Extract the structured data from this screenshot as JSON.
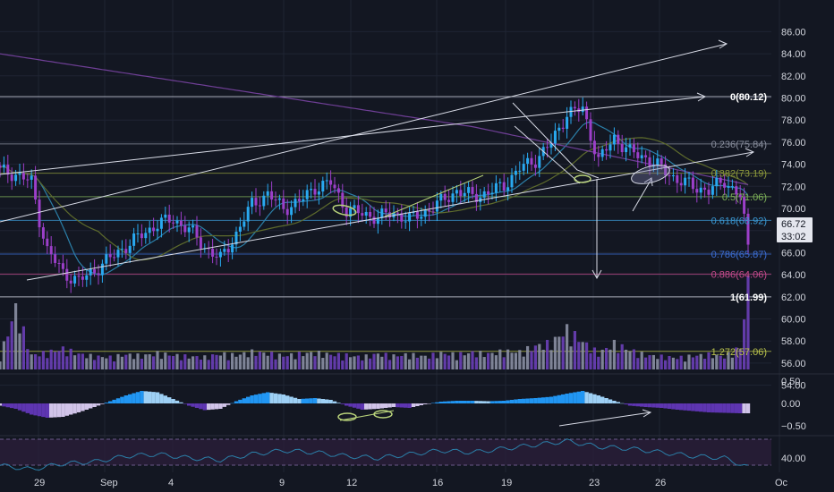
{
  "colors": {
    "background": "#131722",
    "grid": "#1f2433",
    "axis_text": "#d1d4dc",
    "candle_up": "#29a9f0",
    "candle_down": "#9c3fc9",
    "volume_up": "#8b8fa3",
    "volume_down": "#6b3fb8",
    "ma_slow": "#6f3f96",
    "ma_mid": "#5d6a2c",
    "ma_fast": "#2b7fa8",
    "channel": "#d8dbe6",
    "fib_0": "#d8dbe6",
    "fib_0236": "#8a8f9e",
    "fib_0382": "#8e9a3c",
    "fib_05": "#7fb45a",
    "fib_0618": "#3b9ad6",
    "fib_0786": "#3d6fd6",
    "fib_0886": "#c64a8c",
    "fib_1": "#d8dbe6",
    "fib_1272": "#b9c24b",
    "macd_pos_strong": "#2196f3",
    "macd_pos_weak": "#9ed0f5",
    "macd_neg_strong": "#5e35b1",
    "macd_neg_weak": "#d1c4e9",
    "rsi_line": "#2b7fa8",
    "rsi_band": "#2a1e3a",
    "annotation_green": "#b8d27a",
    "price_tag_bg": "#e4e6ee"
  },
  "price_axis": {
    "ticks": [
      "86.00",
      "84.00",
      "82.00",
      "80.00",
      "78.00",
      "76.00",
      "74.00",
      "72.00",
      "70.00",
      "68.00",
      "66.00",
      "64.00",
      "62.00",
      "60.00",
      "58.00",
      "56.00",
      "54.00"
    ],
    "current_price": "66.72",
    "countdown": "33:02"
  },
  "macd_axis": {
    "ticks": [
      "0.50",
      "0.00",
      "−0.50"
    ]
  },
  "rsi_axis": {
    "ticks": [
      "40.00"
    ]
  },
  "time_axis": {
    "labels": [
      "29",
      "Sep",
      "4",
      "9",
      "12",
      "16",
      "19",
      "23",
      "26",
      "Oc"
    ]
  },
  "fib_levels": [
    {
      "label": "0(80.12)",
      "value": 80.12,
      "bold": true
    },
    {
      "label": "0.236(75.84)",
      "value": 75.84,
      "bold": false
    },
    {
      "label": "0.382(73.19)",
      "value": 73.19,
      "bold": false
    },
    {
      "label": "0.5(71.06)",
      "value": 71.06,
      "bold": false
    },
    {
      "label": "0.618(68.92)",
      "value": 68.92,
      "bold": false
    },
    {
      "label": "0.786(65.87)",
      "value": 65.87,
      "bold": false
    },
    {
      "label": "0.886(64.06)",
      "value": 64.06,
      "bold": false
    },
    {
      "label": "1(61.99)",
      "value": 61.99,
      "bold": true
    },
    {
      "label": "1.272(57.06)",
      "value": 57.06,
      "bold": false
    }
  ],
  "chart_data": {
    "type": "candlestick",
    "title": "",
    "xlabel": "",
    "ylabel": "",
    "ylim": [
      53,
      87
    ],
    "x_labels": [
      "29",
      "Sep",
      "4",
      "9",
      "12",
      "16",
      "19",
      "23",
      "26",
      "Oc"
    ],
    "close_series_approx": [
      [
        0,
        73.4
      ],
      [
        4,
        73.1
      ],
      [
        8,
        72.4
      ],
      [
        10,
        69.0
      ],
      [
        12,
        66.2
      ],
      [
        16,
        64.2
      ],
      [
        20,
        63.4
      ],
      [
        24,
        64.4
      ],
      [
        28,
        65.5
      ],
      [
        32,
        66.6
      ],
      [
        36,
        67.6
      ],
      [
        40,
        68.6
      ],
      [
        44,
        69.0
      ],
      [
        48,
        68.1
      ],
      [
        52,
        66.5
      ],
      [
        56,
        65.4
      ],
      [
        60,
        67.7
      ],
      [
        64,
        70.4
      ],
      [
        68,
        71.3
      ],
      [
        72,
        70.0
      ],
      [
        76,
        70.6
      ],
      [
        80,
        71.9
      ],
      [
        84,
        72.3
      ],
      [
        88,
        69.9
      ],
      [
        92,
        69.5
      ],
      [
        96,
        69.2
      ],
      [
        100,
        69.6
      ],
      [
        104,
        69.0
      ],
      [
        108,
        69.7
      ],
      [
        112,
        70.6
      ],
      [
        116,
        71.6
      ],
      [
        120,
        71.1
      ],
      [
        124,
        71.4
      ],
      [
        128,
        72.1
      ],
      [
        132,
        73.6
      ],
      [
        136,
        74.4
      ],
      [
        140,
        75.9
      ],
      [
        144,
        78.6
      ],
      [
        148,
        79.0
      ],
      [
        152,
        74.3
      ],
      [
        156,
        76.4
      ],
      [
        160,
        75.1
      ],
      [
        164,
        74.6
      ],
      [
        168,
        73.6
      ],
      [
        172,
        72.6
      ],
      [
        176,
        72.0
      ],
      [
        180,
        71.6
      ],
      [
        184,
        72.5
      ],
      [
        188,
        71.1
      ],
      [
        190,
        66.72
      ]
    ],
    "volume_approx": [
      [
        0,
        2.0
      ],
      [
        4,
        9.4
      ],
      [
        8,
        2.2
      ],
      [
        12,
        2.6
      ],
      [
        16,
        3.2
      ],
      [
        20,
        2.4
      ],
      [
        24,
        2.0
      ],
      [
        28,
        1.9
      ],
      [
        32,
        2.3
      ],
      [
        36,
        2.1
      ],
      [
        40,
        2.5
      ],
      [
        44,
        2.2
      ],
      [
        48,
        2.0
      ],
      [
        52,
        1.9
      ],
      [
        56,
        2.4
      ],
      [
        60,
        2.2
      ],
      [
        64,
        2.7
      ],
      [
        68,
        2.5
      ],
      [
        72,
        2.1
      ],
      [
        76,
        2.4
      ],
      [
        80,
        2.6
      ],
      [
        84,
        2.3
      ],
      [
        88,
        2.2
      ],
      [
        92,
        1.9
      ],
      [
        96,
        2.4
      ],
      [
        100,
        2.1
      ],
      [
        104,
        2.3
      ],
      [
        108,
        2.0
      ],
      [
        112,
        2.5
      ],
      [
        116,
        2.3
      ],
      [
        120,
        2.6
      ],
      [
        124,
        2.4
      ],
      [
        128,
        2.8
      ],
      [
        132,
        2.7
      ],
      [
        136,
        3.6
      ],
      [
        140,
        4.1
      ],
      [
        144,
        6.2
      ],
      [
        148,
        4.3
      ],
      [
        152,
        2.5
      ],
      [
        156,
        4.0
      ],
      [
        160,
        3.0
      ],
      [
        164,
        2.2
      ],
      [
        168,
        2.0
      ],
      [
        172,
        1.8
      ],
      [
        176,
        2.1
      ],
      [
        180,
        2.3
      ],
      [
        184,
        2.0
      ],
      [
        188,
        3.4
      ],
      [
        190,
        13.0
      ]
    ],
    "macd_hist_approx": [
      [
        0,
        -0.05
      ],
      [
        4,
        -0.12
      ],
      [
        8,
        -0.25
      ],
      [
        12,
        -0.32
      ],
      [
        16,
        -0.3
      ],
      [
        20,
        -0.2
      ],
      [
        24,
        -0.08
      ],
      [
        28,
        0.05
      ],
      [
        32,
        0.18
      ],
      [
        36,
        0.28
      ],
      [
        40,
        0.25
      ],
      [
        44,
        0.1
      ],
      [
        48,
        -0.05
      ],
      [
        52,
        -0.15
      ],
      [
        56,
        -0.12
      ],
      [
        60,
        0.05
      ],
      [
        64,
        0.18
      ],
      [
        68,
        0.25
      ],
      [
        72,
        0.2
      ],
      [
        76,
        0.1
      ],
      [
        80,
        0.12
      ],
      [
        84,
        0.08
      ],
      [
        88,
        -0.05
      ],
      [
        92,
        -0.14
      ],
      [
        96,
        -0.12
      ],
      [
        100,
        -0.08
      ],
      [
        104,
        -0.1
      ],
      [
        108,
        -0.02
      ],
      [
        112,
        0.04
      ],
      [
        116,
        0.06
      ],
      [
        120,
        0.06
      ],
      [
        124,
        0.05
      ],
      [
        128,
        0.06
      ],
      [
        132,
        0.1
      ],
      [
        136,
        0.12
      ],
      [
        140,
        0.15
      ],
      [
        144,
        0.22
      ],
      [
        148,
        0.28
      ],
      [
        152,
        0.18
      ],
      [
        156,
        0.06
      ],
      [
        160,
        -0.05
      ],
      [
        164,
        -0.08
      ],
      [
        168,
        -0.1
      ],
      [
        172,
        -0.14
      ],
      [
        176,
        -0.17
      ],
      [
        180,
        -0.2
      ],
      [
        184,
        -0.21
      ],
      [
        188,
        -0.22
      ],
      [
        190,
        -0.22
      ]
    ],
    "rsi_approx": [
      [
        0,
        38
      ],
      [
        8,
        37
      ],
      [
        16,
        38.5
      ],
      [
        24,
        39
      ],
      [
        32,
        40.5
      ],
      [
        40,
        41
      ],
      [
        48,
        40
      ],
      [
        56,
        39.5
      ],
      [
        64,
        41
      ],
      [
        72,
        42
      ],
      [
        80,
        41.5
      ],
      [
        88,
        40.5
      ],
      [
        96,
        40
      ],
      [
        104,
        41
      ],
      [
        112,
        42
      ],
      [
        120,
        41.5
      ],
      [
        128,
        42.5
      ],
      [
        136,
        43.5
      ],
      [
        144,
        44.5
      ],
      [
        152,
        43
      ],
      [
        160,
        42.5
      ],
      [
        168,
        41.5
      ],
      [
        176,
        40.5
      ],
      [
        184,
        40
      ],
      [
        190,
        37.5
      ]
    ],
    "rsi_ylim": [
      35,
      45
    ],
    "macd_ylim": [
      -0.75,
      0.75
    ],
    "volume_ylim": [
      0,
      14
    ]
  }
}
